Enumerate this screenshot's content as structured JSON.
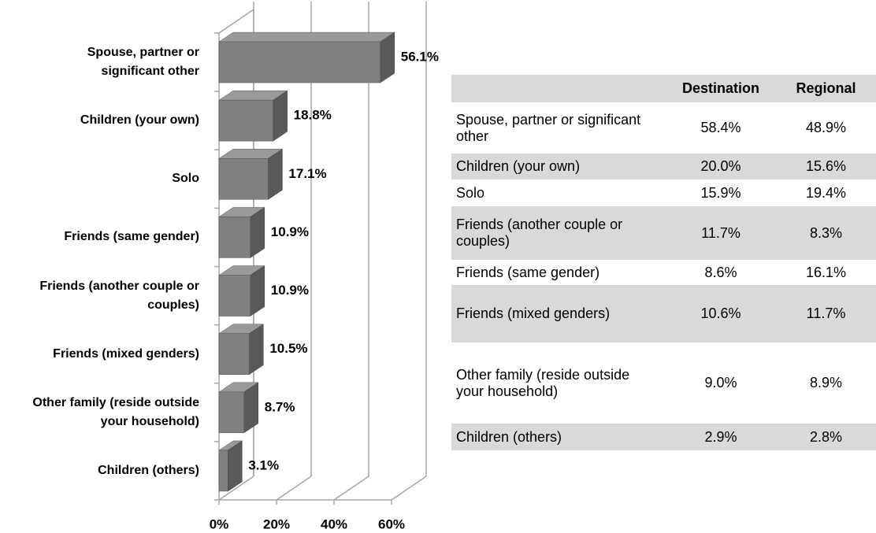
{
  "chart_data": {
    "type": "bar",
    "orientation": "horizontal",
    "3d": true,
    "categories": [
      "Spouse, partner or significant other",
      "Children (your own)",
      "Solo",
      "Friends (same gender)",
      "Friends (another couple or couples)",
      "Friends (mixed genders)",
      "Other family (reside outside your household)",
      "Children (others)"
    ],
    "values": [
      56.1,
      18.8,
      17.1,
      10.9,
      10.9,
      10.5,
      8.7,
      3.1
    ],
    "value_labels": [
      "56.1%",
      "18.8%",
      "17.1%",
      "10.9%",
      "10.9%",
      "10.5%",
      "8.7%",
      "3.1%"
    ],
    "color": "#808080",
    "xlim": [
      0,
      60
    ],
    "xticks": [
      {
        "value": 0,
        "label": "0%"
      },
      {
        "value": 20,
        "label": "20%"
      },
      {
        "value": 40,
        "label": "40%"
      },
      {
        "value": 60,
        "label": "60%"
      }
    ],
    "grid": true
  },
  "table": {
    "columns": [
      "Destination",
      "Regional"
    ],
    "rows": [
      {
        "label": "Spouse, partner or significant other",
        "values": [
          "58.4%",
          "48.9%"
        ]
      },
      {
        "label": "Children (your own)",
        "values": [
          "20.0%",
          "15.6%"
        ]
      },
      {
        "label": "Solo",
        "values": [
          "15.9%",
          "19.4%"
        ]
      },
      {
        "label": "Friends (another couple or couples)",
        "values": [
          "11.7%",
          "8.3%"
        ]
      },
      {
        "label": "Friends (same gender)",
        "values": [
          "8.6%",
          "16.1%"
        ]
      },
      {
        "label": "Friends (mixed genders)",
        "values": [
          "10.6%",
          "11.7%"
        ]
      },
      {
        "label": "Other family (reside outside your household)",
        "values": [
          "9.0%",
          "8.9%"
        ]
      },
      {
        "label": "Children (others)",
        "values": [
          "2.9%",
          "2.8%"
        ]
      }
    ]
  }
}
